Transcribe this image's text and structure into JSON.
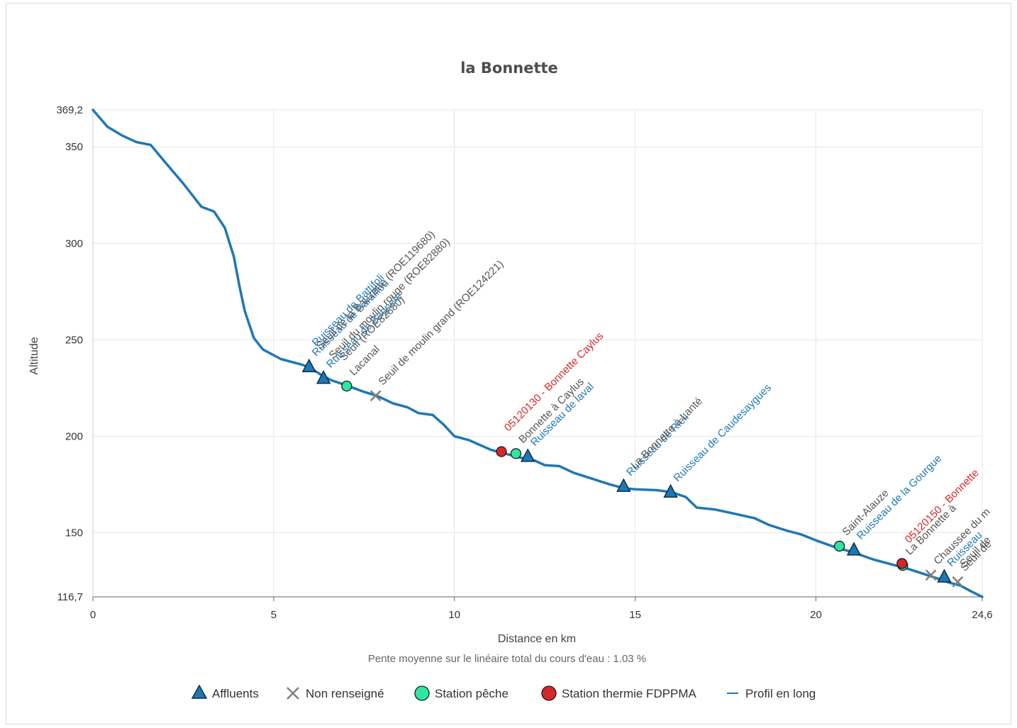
{
  "chart_data": {
    "type": "line",
    "title": "la Bonnette",
    "subtitle": "Pente moyenne sur le linéaire total du cours d'eau : 1.03 %",
    "xlabel": "Distance en km",
    "ylabel": "Altitude",
    "xlim": [
      0,
      24.6
    ],
    "ylim": [
      116.7,
      369.2
    ],
    "x_ticks": [
      {
        "value": 0,
        "label": "0"
      },
      {
        "value": 5,
        "label": "5"
      },
      {
        "value": 10,
        "label": "10"
      },
      {
        "value": 15,
        "label": "15"
      },
      {
        "value": 20,
        "label": "20"
      },
      {
        "value": 24.6,
        "label": "24,6"
      }
    ],
    "y_ticks": [
      {
        "value": 116.7,
        "label": "116,7"
      },
      {
        "value": 150,
        "label": "150"
      },
      {
        "value": 200,
        "label": "200"
      },
      {
        "value": 250,
        "label": "250"
      },
      {
        "value": 300,
        "label": "300"
      },
      {
        "value": 350,
        "label": "350"
      },
      {
        "value": 369.2,
        "label": "369,2"
      }
    ],
    "grid": true,
    "legend_position": "bottom",
    "colors": {
      "profile": "#1f78b4",
      "affluent": "#1f78b4",
      "non_renseigne": "#808080",
      "station_peche": "#2ee6a0",
      "station_thermie": "#d62728",
      "label_blue": "#1f78b4",
      "label_gray": "#555555",
      "label_red": "#d62728"
    },
    "legend": [
      {
        "key": "affluent",
        "label": "Affluents",
        "symbol": "triangle"
      },
      {
        "key": "non_renseigne",
        "label": "Non renseigné",
        "symbol": "cross"
      },
      {
        "key": "station_peche",
        "label": "Station pêche",
        "symbol": "circle"
      },
      {
        "key": "station_thermie",
        "label": "Station thermie FDPPMA",
        "symbol": "circle"
      },
      {
        "key": "profile",
        "label": "Profil en long",
        "symbol": "line"
      }
    ],
    "profile": [
      [
        0,
        369.2
      ],
      [
        0.4,
        360.5
      ],
      [
        0.8,
        356
      ],
      [
        1.2,
        352.5
      ],
      [
        1.6,
        351
      ],
      [
        2.0,
        342
      ],
      [
        2.5,
        331
      ],
      [
        3.0,
        319
      ],
      [
        3.35,
        316.5
      ],
      [
        3.65,
        308
      ],
      [
        3.9,
        293
      ],
      [
        4.05,
        278
      ],
      [
        4.2,
        265
      ],
      [
        4.45,
        251
      ],
      [
        4.7,
        245
      ],
      [
        5.2,
        240
      ],
      [
        5.8,
        237
      ],
      [
        6.0,
        235.5
      ],
      [
        6.3,
        232
      ],
      [
        6.6,
        229
      ],
      [
        7.0,
        226.5
      ],
      [
        7.5,
        223
      ],
      [
        7.85,
        221
      ],
      [
        8.3,
        217
      ],
      [
        8.7,
        215
      ],
      [
        9.0,
        212
      ],
      [
        9.4,
        211
      ],
      [
        9.7,
        206
      ],
      [
        10.0,
        200
      ],
      [
        10.4,
        198
      ],
      [
        11.0,
        193
      ],
      [
        11.4,
        191
      ],
      [
        11.8,
        189
      ],
      [
        12.2,
        187.5
      ],
      [
        12.5,
        185
      ],
      [
        12.9,
        184.5
      ],
      [
        13.3,
        181
      ],
      [
        13.8,
        178
      ],
      [
        14.3,
        175
      ],
      [
        14.7,
        173
      ],
      [
        15.0,
        172.5
      ],
      [
        15.6,
        172
      ],
      [
        16.0,
        171
      ],
      [
        16.4,
        168.5
      ],
      [
        16.7,
        163
      ],
      [
        17.2,
        162
      ],
      [
        17.7,
        160
      ],
      [
        18.3,
        157.5
      ],
      [
        18.7,
        154
      ],
      [
        19.2,
        151
      ],
      [
        19.6,
        149
      ],
      [
        20.0,
        146
      ],
      [
        20.6,
        142
      ],
      [
        21.0,
        140
      ],
      [
        21.6,
        136
      ],
      [
        22.0,
        134
      ],
      [
        22.5,
        131.5
      ],
      [
        23.0,
        128.5
      ],
      [
        23.4,
        126
      ],
      [
        23.7,
        124
      ],
      [
        24.0,
        122.5
      ],
      [
        24.3,
        119.5
      ],
      [
        24.6,
        116.7
      ]
    ],
    "affluents": [
      {
        "x": 5.98,
        "y": 236,
        "labels": [
          "Ruisseau de Baraillou",
          "Ruisseau de Battifoli"
        ]
      },
      {
        "x": 6.38,
        "y": 230,
        "labels": [
          "Ruisseau de Bagnefe"
        ]
      },
      {
        "x": 12.03,
        "y": 189.5,
        "labels": [
          "Ruisseau de laval"
        ]
      },
      {
        "x": 14.68,
        "y": 174,
        "labels": [
          "Ruisseau de Rieil"
        ]
      },
      {
        "x": 15.98,
        "y": 171,
        "labels": [
          "Ruisseau de Caudesaygues"
        ]
      },
      {
        "x": 21.05,
        "y": 141,
        "labels": [
          "Ruisseau de la Gourgue"
        ]
      },
      {
        "x": 23.55,
        "y": 127,
        "labels": [
          "Ruisseau"
        ]
      }
    ],
    "non_renseigne": [
      {
        "x": 7.82,
        "y": 221,
        "labels": [
          "Seuil de moulin grand (ROE124221)"
        ]
      },
      {
        "x": 23.18,
        "y": 128,
        "labels": [
          "Chaussee du m"
        ]
      },
      {
        "x": 23.92,
        "y": 124.5,
        "labels": [
          "Seuil de"
        ]
      }
    ],
    "stations_peche": [
      {
        "x": 7.02,
        "y": 226,
        "labels": [
          "Lacanal"
        ]
      },
      {
        "x": 11.7,
        "y": 191,
        "labels": [
          "Bonnette à Caylus"
        ]
      },
      {
        "x": 20.65,
        "y": 143,
        "labels": [
          "Saint-Alauze"
        ]
      },
      {
        "x": 22.4,
        "y": 133,
        "labels": [
          "La Bonnette à"
        ]
      }
    ],
    "stations_thermie": [
      {
        "x": 11.3,
        "y": 192,
        "labels": [
          "05120130 - Bonnette Caylus"
        ]
      },
      {
        "x": 22.38,
        "y": 134,
        "labels": [
          "05120150 - Bonnette"
        ]
      }
    ],
    "extra_labels": [
      {
        "x": 6.1,
        "y": 236,
        "text": "Seuil de la Bauzette (ROE119680)"
      },
      {
        "x": 6.45,
        "y": 231,
        "text": "Seuil du moulin rouge (ROE82880)"
      },
      {
        "x": 6.75,
        "y": 230,
        "text": "Seuil (ROE82880)"
      },
      {
        "x": 14.8,
        "y": 174,
        "text": "La Bonnette à Lanté"
      },
      {
        "x": 23.9,
        "y": 123,
        "text": "Seuil de"
      }
    ]
  }
}
